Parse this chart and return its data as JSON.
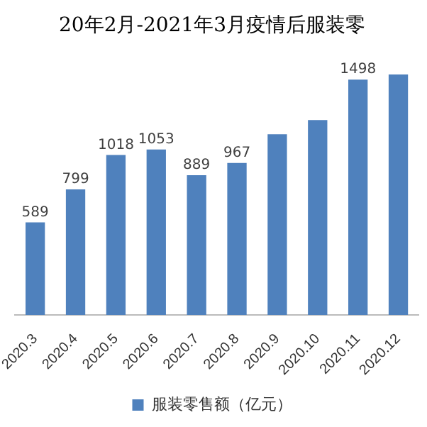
{
  "chart_data": {
    "type": "bar",
    "title": "20年2月-2021年3月疫情后服装零",
    "categories": [
      "2020.3",
      "2020.4",
      "2020.5",
      "2020.6",
      "2020.7",
      "2020.8",
      "2020.9",
      "2020.10",
      "2020.11",
      "2020.12"
    ],
    "series": [
      {
        "name": "服装零售额（亿元）",
        "color": "#4f81bd",
        "values": [
          589,
          799,
          1018,
          1053,
          889,
          967,
          1150,
          1240,
          1498,
          1530
        ],
        "value_labels": [
          "589",
          "799",
          "1018",
          "1053",
          "889",
          "967",
          null,
          null,
          "1498",
          null
        ]
      }
    ],
    "legend": "bottom"
  }
}
